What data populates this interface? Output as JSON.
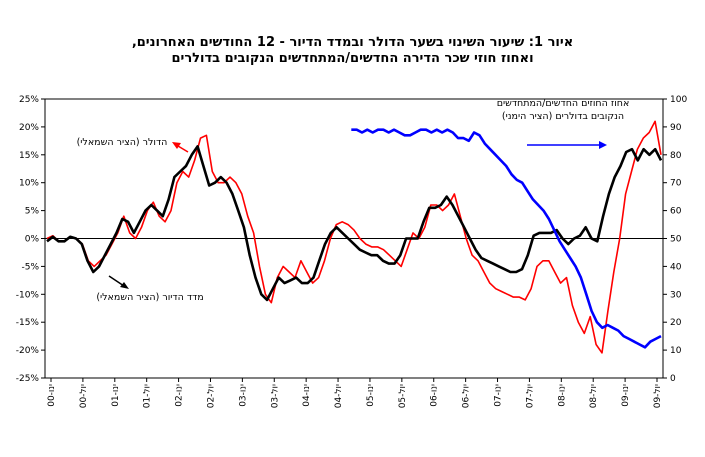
{
  "chart_data": {
    "type": "line",
    "title_lines": [
      "איור 1: שיעור השינוי בשער הדולר ובמדד הדיור - 12 החודשים האחרונים,",
      "ואחוז חוזי שכר הדירה החדשים/המתחדשים הנקובים בדולרים"
    ],
    "x_tick_labels": [
      "ינו-00",
      "יול-00",
      "ינו-01",
      "יול-01",
      "ינו-02",
      "יול-02",
      "ינו-03",
      "יול-03",
      "ינו-04",
      "יול-04",
      "ינו-05",
      "יול-05",
      "ינו-06",
      "יול-06",
      "ינו-07",
      "יול-07",
      "ינו-08",
      "יול-08",
      "ינו-09",
      "יול-09"
    ],
    "left_axis": {
      "min": -25,
      "max": 25,
      "step": 5,
      "tick_labels": [
        "25%",
        "20%",
        "15%",
        "10%",
        "5%",
        "0%",
        "-5%",
        "-10%",
        "-15%",
        "-20%",
        "-25%"
      ]
    },
    "right_axis": {
      "min": 0,
      "max": 100,
      "step": 10,
      "tick_labels": [
        "100",
        "90",
        "80",
        "70",
        "60",
        "50",
        "40",
        "30",
        "20",
        "10",
        "0"
      ]
    },
    "annotations": {
      "dollar": "הדולר (הציר השמאלי)",
      "housing": "מדד הדיור (הציר השמאלי)",
      "contracts_line1": "אחוז החוזים החדשים/המתחדשים",
      "contracts_line2": "הנקובים בדולרים (הציר הימני)"
    },
    "colors": {
      "dollar": "#ff0000",
      "housing": "#000000",
      "contracts": "#0000ff"
    },
    "series": [
      {
        "name": "הדולר (הציר השמאלי)",
        "axis": "left",
        "color": "#ff0000",
        "values": [
          0,
          0.5,
          -0.5,
          -0.5,
          0.3,
          0,
          -1,
          -4,
          -5,
          -4,
          -3,
          -1,
          1,
          4,
          1,
          0,
          2,
          5,
          6.5,
          4,
          3,
          5,
          10,
          12,
          11,
          14,
          18,
          18.5,
          12,
          10,
          10,
          11,
          10,
          8,
          4,
          1,
          -5,
          -10,
          -11.5,
          -7,
          -5,
          -6,
          -7,
          -4,
          -6,
          -8,
          -7,
          -4,
          0,
          2.5,
          3,
          2.5,
          1.5,
          0,
          -1,
          -1.5,
          -1.5,
          -2,
          -3,
          -4,
          -5,
          -2,
          1,
          0,
          2,
          6,
          6,
          5,
          6,
          8,
          4,
          0,
          -3,
          -4,
          -6,
          -8,
          -9,
          -9.5,
          -10,
          -10.5,
          -10.5,
          -11,
          -9,
          -5,
          -4,
          -4,
          -6,
          -8,
          -7,
          -12,
          -15,
          -17,
          -14,
          -19,
          -20.5,
          -13,
          -6,
          0,
          8,
          12,
          16,
          18,
          19,
          21,
          15
        ]
      },
      {
        "name": "מדד הדיור (הציר השמאלי)",
        "axis": "left",
        "color": "#000000",
        "values": [
          -0.5,
          0.3,
          -0.5,
          -0.5,
          0.3,
          0,
          -1,
          -4,
          -6,
          -5,
          -3,
          -1,
          1,
          3.5,
          3,
          1,
          3,
          5,
          6,
          5,
          4,
          7,
          11,
          12,
          13,
          15,
          16.5,
          13,
          9.5,
          10,
          11,
          10,
          8,
          5,
          2,
          -3,
          -7,
          -10,
          -11,
          -9,
          -7,
          -8,
          -7.5,
          -7,
          -8,
          -8,
          -7,
          -4,
          -1,
          1,
          2,
          1,
          0,
          -1,
          -2,
          -2.5,
          -3,
          -3,
          -4,
          -4.5,
          -4.5,
          -3,
          0,
          0,
          0,
          3,
          5.5,
          5.5,
          6,
          7.5,
          6,
          4,
          2,
          0,
          -2,
          -3.5,
          -4,
          -4.5,
          -5,
          -5.5,
          -6,
          -6,
          -5.5,
          -3,
          0.5,
          1,
          1,
          1,
          1.5,
          0,
          -1,
          0,
          0.5,
          2,
          0,
          -0.5,
          4,
          8,
          11,
          13,
          15.5,
          16,
          14,
          16,
          15,
          16,
          14
        ]
      },
      {
        "name": "אחוז החוזים החדשים/המתחדשים הנקובים בדולרים (הציר הימני)",
        "axis": "right",
        "color": "#0000ff",
        "values": [
          null,
          null,
          null,
          null,
          null,
          null,
          null,
          null,
          null,
          null,
          null,
          null,
          null,
          null,
          null,
          null,
          null,
          null,
          null,
          null,
          null,
          null,
          null,
          null,
          null,
          null,
          null,
          null,
          null,
          null,
          null,
          null,
          null,
          null,
          null,
          null,
          null,
          null,
          null,
          null,
          null,
          null,
          null,
          null,
          null,
          null,
          null,
          null,
          null,
          null,
          null,
          null,
          null,
          null,
          null,
          null,
          null,
          89,
          89,
          88,
          89,
          88,
          89,
          89,
          88,
          89,
          88,
          87,
          87,
          88,
          89,
          89,
          88,
          89,
          88,
          89,
          88,
          86,
          86,
          85,
          88,
          87,
          84,
          82,
          80,
          78,
          76,
          73,
          71,
          70,
          67,
          64,
          62,
          60,
          57,
          53,
          49,
          46,
          43,
          40,
          36,
          30,
          24,
          20,
          18,
          19,
          18,
          17,
          15,
          14,
          13,
          12,
          11,
          13,
          14,
          15
        ]
      }
    ]
  }
}
